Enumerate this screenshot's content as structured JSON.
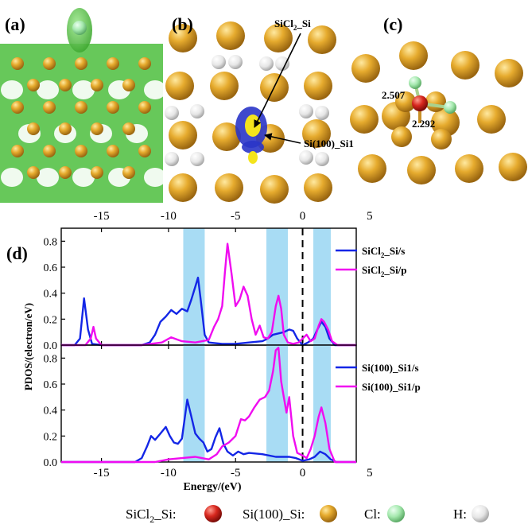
{
  "panel_labels": {
    "a": "(a)",
    "b": "(b)",
    "c": "(c)",
    "d": "(d)"
  },
  "panel_b": {
    "annotation_top": "SiCl",
    "annotation_top_sub": "2",
    "annotation_top_tail": "_Si",
    "annotation_bottom": "Si(100)_Si1"
  },
  "panel_c": {
    "bond_1": "2.507",
    "bond_2": "2.292"
  },
  "legend_bottom": {
    "sicl2": "SiCl",
    "sicl2_sub": "2",
    "sicl2_tail": "_Si:",
    "si100": "Si(100)_Si:",
    "cl": "Cl:",
    "h": "H:"
  },
  "colors": {
    "sicl2_atom": "#d2261f",
    "si_atom": "#e3a52a",
    "cl_atom": "#9fe6a8",
    "h_atom": "#e8e8e8",
    "s_orbital": "#1326e6",
    "p_orbital": "#f00cf0",
    "highlight_band": "#a8dcf4",
    "isosurface_green": "#4fc43f"
  },
  "chart_data": [
    {
      "type": "line",
      "panel": "top",
      "ylabel": "PDOS/(electron/eV)",
      "xlim": [
        -18,
        4
      ],
      "ylim": [
        0,
        0.9
      ],
      "xticks": [
        -15,
        -10,
        -5,
        0,
        5
      ],
      "yticks": [
        0.0,
        0.2,
        0.4,
        0.6,
        0.8
      ],
      "fermi_level": 0,
      "highlight_bands": [
        [
          -8.9,
          -7.3
        ],
        [
          -2.7,
          -1.1
        ],
        [
          0.8,
          2.1
        ]
      ],
      "series": [
        {
          "name_main": "SiCl",
          "name_sub": "2",
          "name_tail": "_Si/s",
          "color": "#1326e6",
          "x": [
            -18,
            -17,
            -16.6,
            -16.3,
            -16.0,
            -15.7,
            -15,
            -12,
            -11.4,
            -11,
            -10.6,
            -10.2,
            -9.8,
            -9.4,
            -9.0,
            -8.6,
            -8.3,
            -8.0,
            -7.8,
            -7.6,
            -7.3,
            -7.0,
            -6.0,
            -5.0,
            -4.0,
            -3.0,
            -2.6,
            -2.2,
            -1.8,
            -1.4,
            -1.0,
            -0.7,
            -0.4,
            0.0,
            0.4,
            0.8,
            1.1,
            1.4,
            1.7,
            2.0,
            2.4,
            4
          ],
          "y": [
            0,
            0,
            0.05,
            0.36,
            0.12,
            0.01,
            0,
            0,
            0.02,
            0.08,
            0.18,
            0.22,
            0.27,
            0.24,
            0.28,
            0.26,
            0.35,
            0.45,
            0.52,
            0.35,
            0.08,
            0.02,
            0.01,
            0.01,
            0.02,
            0.03,
            0.05,
            0.08,
            0.09,
            0.1,
            0.12,
            0.11,
            0.05,
            0.0,
            0.02,
            0.05,
            0.12,
            0.18,
            0.14,
            0.05,
            0.0,
            0
          ]
        },
        {
          "name_main": "SiCl",
          "name_sub": "2",
          "name_tail": "_Si/p",
          "color": "#f00cf0",
          "x": [
            -18,
            -16.2,
            -15.8,
            -15.6,
            -15.4,
            -15.0,
            -12,
            -10.5,
            -9.8,
            -9.0,
            -8.0,
            -7.0,
            -6.6,
            -6.3,
            -6.0,
            -5.8,
            -5.6,
            -5.3,
            -5.0,
            -4.7,
            -4.4,
            -4.1,
            -3.8,
            -3.5,
            -3.2,
            -2.9,
            -2.6,
            -2.3,
            -2.0,
            -1.8,
            -1.6,
            -1.4,
            -1.1,
            -0.7,
            -0.3,
            0.0,
            0.3,
            0.6,
            0.9,
            1.2,
            1.4,
            1.6,
            1.9,
            2.2,
            2.6,
            4
          ],
          "y": [
            0,
            0,
            0.05,
            0.14,
            0.05,
            0,
            0,
            0.02,
            0.06,
            0.03,
            0.02,
            0.04,
            0.14,
            0.2,
            0.3,
            0.55,
            0.78,
            0.55,
            0.3,
            0.35,
            0.45,
            0.38,
            0.2,
            0.08,
            0.15,
            0.06,
            0.05,
            0.1,
            0.3,
            0.38,
            0.28,
            0.08,
            0.02,
            0.01,
            0.02,
            0.05,
            0.08,
            0.03,
            0.05,
            0.15,
            0.2,
            0.18,
            0.12,
            0.03,
            0.0,
            0
          ]
        }
      ]
    },
    {
      "type": "line",
      "panel": "bottom",
      "xlabel": "Energy/(eV)",
      "ylabel": "PDOS/(electron/eV)",
      "xlim": [
        -18,
        4
      ],
      "ylim": [
        0,
        0.9
      ],
      "xticks": [
        -15,
        -10,
        -5,
        0,
        5
      ],
      "yticks": [
        0.0,
        0.2,
        0.4,
        0.6,
        0.8
      ],
      "fermi_level": 0,
      "highlight_bands": [
        [
          -8.9,
          -7.3
        ],
        [
          -2.7,
          -1.1
        ],
        [
          0.8,
          2.1
        ]
      ],
      "series": [
        {
          "name": "Si(100)_Si1/s",
          "color": "#1326e6",
          "x": [
            -18,
            -12.5,
            -12.0,
            -11.6,
            -11.3,
            -11.0,
            -10.6,
            -10.2,
            -9.9,
            -9.6,
            -9.3,
            -9.0,
            -8.6,
            -8.3,
            -8.0,
            -7.7,
            -7.4,
            -7.1,
            -6.8,
            -6.5,
            -6.2,
            -5.9,
            -5.6,
            -5.2,
            -4.8,
            -4.4,
            -4.0,
            -3.0,
            -2.0,
            -1.0,
            -0.5,
            0.0,
            0.5,
            0.9,
            1.3,
            1.7,
            2.1,
            2.5,
            4
          ],
          "y": [
            0,
            0,
            0.03,
            0.12,
            0.2,
            0.17,
            0.22,
            0.27,
            0.2,
            0.15,
            0.14,
            0.18,
            0.48,
            0.35,
            0.22,
            0.18,
            0.15,
            0.08,
            0.1,
            0.19,
            0.26,
            0.14,
            0.08,
            0.05,
            0.08,
            0.06,
            0.07,
            0.06,
            0.04,
            0.04,
            0.03,
            0.01,
            0.02,
            0.04,
            0.08,
            0.06,
            0.02,
            0.0,
            0
          ]
        },
        {
          "name": "Si(100)_Si1/p",
          "color": "#f00cf0",
          "x": [
            -18,
            -11,
            -10,
            -9.0,
            -8.0,
            -7.0,
            -6.4,
            -6.0,
            -5.5,
            -5.0,
            -4.6,
            -4.3,
            -4.0,
            -3.6,
            -3.2,
            -2.8,
            -2.5,
            -2.2,
            -2.0,
            -1.8,
            -1.6,
            -1.4,
            -1.2,
            -1.0,
            -0.7,
            -0.4,
            0.0,
            0.3,
            0.6,
            0.9,
            1.2,
            1.4,
            1.7,
            2.0,
            2.4,
            4
          ],
          "y": [
            0,
            0,
            0.02,
            0.03,
            0.04,
            0.02,
            0.06,
            0.12,
            0.15,
            0.2,
            0.33,
            0.32,
            0.35,
            0.42,
            0.48,
            0.5,
            0.55,
            0.7,
            0.86,
            0.88,
            0.62,
            0.5,
            0.38,
            0.5,
            0.2,
            0.07,
            0.05,
            0.03,
            0.1,
            0.2,
            0.35,
            0.42,
            0.3,
            0.1,
            0.0,
            0
          ]
        }
      ]
    }
  ]
}
